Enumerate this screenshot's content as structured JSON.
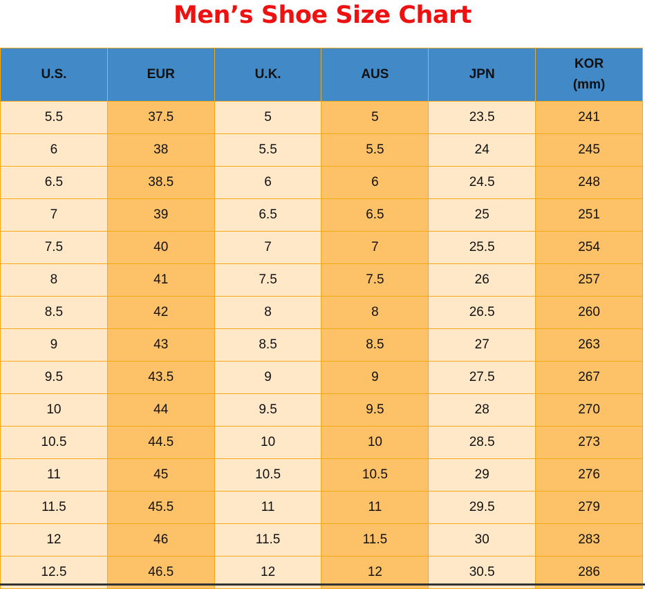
{
  "title": "Men’s Shoe Size Chart",
  "colors": {
    "title": "#EE1111",
    "header": "#4189C7",
    "light_cell": "#FEE8C8",
    "dark_cell": "#FDC167",
    "border": "#F5A714"
  },
  "headers": [
    "U.S.",
    "EUR",
    "U.K.",
    "AUS",
    "JPN",
    "KOR\n(mm)"
  ],
  "rows": [
    [
      "5.5",
      "37.5",
      "5",
      "5",
      "23.5",
      "241"
    ],
    [
      "6",
      "38",
      "5.5",
      "5.5",
      "24",
      "245"
    ],
    [
      "6.5",
      "38.5",
      "6",
      "6",
      "24.5",
      "248"
    ],
    [
      "7",
      "39",
      "6.5",
      "6.5",
      "25",
      "251"
    ],
    [
      "7.5",
      "40",
      "7",
      "7",
      "25.5",
      "254"
    ],
    [
      "8",
      "41",
      "7.5",
      "7.5",
      "26",
      "257"
    ],
    [
      "8.5",
      "42",
      "8",
      "8",
      "26.5",
      "260"
    ],
    [
      "9",
      "43",
      "8.5",
      "8.5",
      "27",
      "263"
    ],
    [
      "9.5",
      "43.5",
      "9",
      "9",
      "27.5",
      "267"
    ],
    [
      "10",
      "44",
      "9.5",
      "9.5",
      "28",
      "270"
    ],
    [
      "10.5",
      "44.5",
      "10",
      "10",
      "28.5",
      "273"
    ],
    [
      "11",
      "45",
      "10.5",
      "10.5",
      "29",
      "276"
    ],
    [
      "11.5",
      "45.5",
      "11",
      "11",
      "29.5",
      "279"
    ],
    [
      "12",
      "46",
      "11.5",
      "11.5",
      "30",
      "283"
    ],
    [
      "12.5",
      "46.5",
      "12",
      "12",
      "30.5",
      "286"
    ]
  ]
}
